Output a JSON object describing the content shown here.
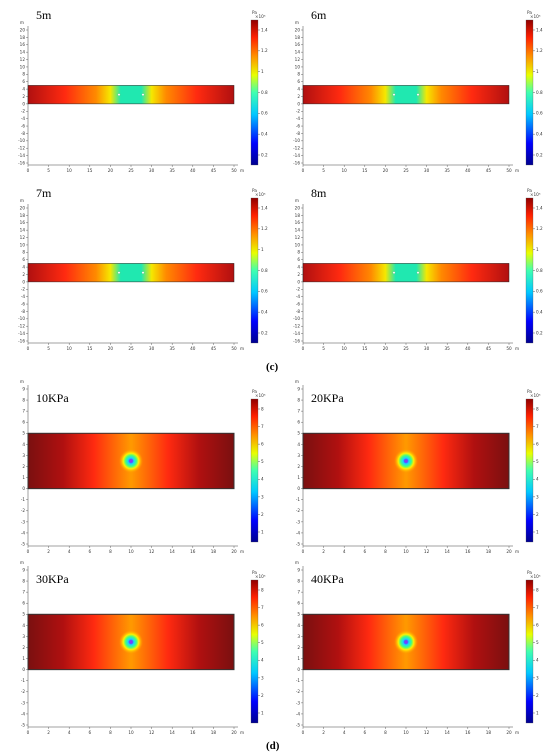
{
  "section_c": {
    "label": "(c)",
    "panels": [
      {
        "title": "5m",
        "x_ticks": [
          "0",
          "5",
          "10",
          "15",
          "20",
          "25",
          "30",
          "35",
          "40",
          "45",
          "50"
        ],
        "x_unit": "m",
        "y_ticks": [
          "20",
          "18",
          "16",
          "14",
          "12",
          "10",
          "8",
          "6",
          "4",
          "2",
          "0",
          "-2",
          "-4",
          "-6",
          "-8",
          "-10",
          "-12",
          "-14",
          "-16"
        ],
        "y_unit": "m",
        "cb_unit": "Pa",
        "cb_exp": "×10⁵",
        "cb_ticks": [
          "1.4",
          "1.2",
          "1",
          "0.8",
          "0.6",
          "0.4",
          "0.2"
        ]
      },
      {
        "title": "6m",
        "x_ticks": [
          "0",
          "5",
          "10",
          "15",
          "20",
          "25",
          "30",
          "35",
          "40",
          "45",
          "50"
        ],
        "x_unit": "m",
        "y_ticks": [
          "20",
          "18",
          "16",
          "14",
          "12",
          "10",
          "8",
          "6",
          "4",
          "2",
          "0",
          "-2",
          "-4",
          "-6",
          "-8",
          "-10",
          "-12",
          "-14",
          "-16"
        ],
        "y_unit": "m",
        "cb_unit": "Pa",
        "cb_exp": "×10⁵",
        "cb_ticks": [
          "1.4",
          "1.2",
          "1",
          "0.8",
          "0.6",
          "0.4",
          "0.2"
        ]
      },
      {
        "title": "7m",
        "x_ticks": [
          "0",
          "5",
          "10",
          "15",
          "20",
          "25",
          "30",
          "35",
          "40",
          "45",
          "50"
        ],
        "x_unit": "m",
        "y_ticks": [
          "20",
          "18",
          "16",
          "14",
          "12",
          "10",
          "8",
          "6",
          "4",
          "2",
          "0",
          "-2",
          "-4",
          "-6",
          "-8",
          "-10",
          "-12",
          "-14",
          "-16"
        ],
        "y_unit": "m",
        "cb_unit": "Pa",
        "cb_exp": "×10⁵",
        "cb_ticks": [
          "1.4",
          "1.2",
          "1",
          "0.8",
          "0.6",
          "0.4",
          "0.2"
        ]
      },
      {
        "title": "8m",
        "x_ticks": [
          "0",
          "5",
          "10",
          "15",
          "20",
          "25",
          "30",
          "35",
          "40",
          "45",
          "50"
        ],
        "x_unit": "m",
        "y_ticks": [
          "20",
          "18",
          "16",
          "14",
          "12",
          "10",
          "8",
          "6",
          "4",
          "2",
          "0",
          "-2",
          "-4",
          "-6",
          "-8",
          "-10",
          "-12",
          "-14",
          "-16"
        ],
        "y_unit": "m",
        "cb_unit": "Pa",
        "cb_exp": "×10⁵",
        "cb_ticks": [
          "1.4",
          "1.2",
          "1",
          "0.8",
          "0.6",
          "0.4",
          "0.2"
        ]
      }
    ]
  },
  "section_d": {
    "label": "(d)",
    "panels": [
      {
        "title": "10KPa",
        "x_ticks": [
          "0",
          "2",
          "4",
          "6",
          "8",
          "10",
          "12",
          "14",
          "16",
          "18",
          "20"
        ],
        "x_unit": "m",
        "y_ticks": [
          "9",
          "8",
          "7",
          "6",
          "5",
          "4",
          "3",
          "2",
          "1",
          "0",
          "-1",
          "-2",
          "-3",
          "-4",
          "-5"
        ],
        "y_unit": "m",
        "cb_unit": "Pa",
        "cb_exp": "×10⁵",
        "cb_ticks": [
          "8",
          "7",
          "6",
          "5",
          "4",
          "3",
          "2",
          "1"
        ]
      },
      {
        "title": "20KPa",
        "x_ticks": [
          "0",
          "2",
          "4",
          "6",
          "8",
          "10",
          "12",
          "14",
          "16",
          "18",
          "20"
        ],
        "x_unit": "m",
        "y_ticks": [
          "9",
          "8",
          "7",
          "6",
          "5",
          "4",
          "3",
          "2",
          "1",
          "0",
          "-1",
          "-2",
          "-3",
          "-4",
          "-5"
        ],
        "y_unit": "m",
        "cb_unit": "Pa",
        "cb_exp": "×10⁵",
        "cb_ticks": [
          "8",
          "7",
          "6",
          "5",
          "4",
          "3",
          "2",
          "1"
        ]
      },
      {
        "title": "30KPa",
        "x_ticks": [
          "0",
          "2",
          "4",
          "6",
          "8",
          "10",
          "12",
          "14",
          "16",
          "18",
          "20"
        ],
        "x_unit": "m",
        "y_ticks": [
          "9",
          "8",
          "7",
          "6",
          "5",
          "4",
          "3",
          "2",
          "1",
          "0",
          "-1",
          "-2",
          "-3",
          "-4",
          "-5"
        ],
        "y_unit": "m",
        "cb_unit": "Pa",
        "cb_exp": "×10⁵",
        "cb_ticks": [
          "8",
          "7",
          "6",
          "5",
          "4",
          "3",
          "2",
          "1"
        ]
      },
      {
        "title": "40KPa",
        "x_ticks": [
          "0",
          "2",
          "4",
          "6",
          "8",
          "10",
          "12",
          "14",
          "16",
          "18",
          "20"
        ],
        "x_unit": "m",
        "y_ticks": [
          "9",
          "8",
          "7",
          "6",
          "5",
          "4",
          "3",
          "2",
          "1",
          "0",
          "-1",
          "-2",
          "-3",
          "-4",
          "-5"
        ],
        "y_unit": "m",
        "cb_unit": "Pa",
        "cb_exp": "×10⁵",
        "cb_ticks": [
          "8",
          "7",
          "6",
          "5",
          "4",
          "3",
          "2",
          "1"
        ]
      }
    ]
  },
  "colors": {
    "field_edge": "#b01010",
    "field_mid": "#ff2a10",
    "field_orange": "#ff8a00",
    "field_yellow": "#f5e800",
    "field_cyan": "#20e8b0",
    "field_dark": "#7a1010",
    "axis": "#444444"
  }
}
